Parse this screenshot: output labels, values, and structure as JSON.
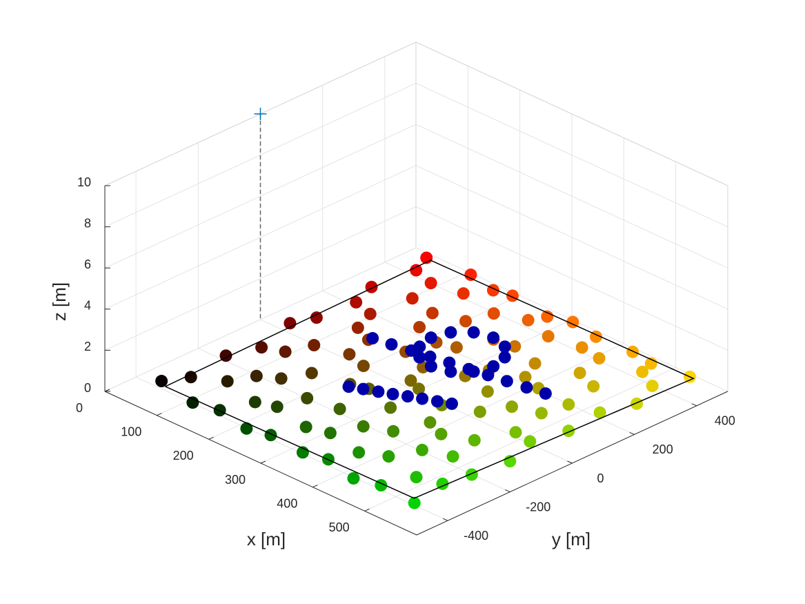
{
  "chart_data": {
    "type": "scatter3d",
    "xlabel": "x [m]",
    "ylabel": "y [m]",
    "zlabel": "z [m]",
    "xlim": [
      0,
      600
    ],
    "ylim": [
      -500,
      500
    ],
    "zlim": [
      0,
      10
    ],
    "xticks": [
      0,
      100,
      200,
      300,
      400,
      500
    ],
    "yticks": [
      -400,
      -200,
      0,
      200,
      400
    ],
    "zticks": [
      0,
      2,
      4,
      6,
      8,
      10
    ],
    "grid": true,
    "series": [
      {
        "marker": "o",
        "color": "position",
        "x": [
          33,
          53,
          42,
          59,
          36,
          50,
          56,
          39,
          47,
          31,
          108,
          97,
          114,
          91,
          105,
          111,
          94,
          102,
          88,
          109,
          150,
          167,
          143,
          161,
          158,
          146,
          169,
          152,
          141,
          163,
          214,
          198,
          209,
          221,
          196,
          207,
          217,
          201,
          212,
          193,
          251,
          268,
          263,
          249,
          272,
          256,
          247,
          266,
          259,
          270,
          318,
          304,
          322,
          309,
          297,
          315,
          326,
          301,
          312,
          306,
          357,
          372,
          361,
          378,
          353,
          369,
          375,
          356,
          368,
          359,
          421,
          409,
          428,
          413,
          404,
          424,
          411,
          419,
          407,
          426,
          462,
          479,
          471,
          458,
          481,
          466,
          474,
          460,
          477,
          468,
          531,
          518,
          527,
          536,
          514,
          529,
          521,
          538,
          516,
          533
        ],
        "y": [
          -373,
          -312,
          -181,
          -95,
          35,
          97,
          214,
          292,
          422,
          482,
          -398,
          -268,
          -203,
          -72,
          -3,
          128,
          196,
          318,
          401,
          494,
          -381,
          -296,
          -172,
          -104,
          22,
          103,
          229,
          299,
          417,
          476,
          -402,
          -277,
          -199,
          -81,
          4,
          121,
          203,
          324,
          396,
          488,
          -386,
          -301,
          -184,
          -67,
          29,
          95,
          218,
          305,
          428,
          471,
          -395,
          -283,
          -207,
          -98,
          13,
          132,
          190,
          315,
          404,
          493,
          -378,
          -305,
          -176,
          -86,
          -7,
          114,
          225,
          288,
          419,
          479,
          -404,
          -271,
          -195,
          -109,
          31,
          100,
          207,
          327,
          409,
          485,
          -384,
          -299,
          -168,
          -77,
          17,
          125,
          199,
          302,
          431,
          474,
          -392,
          -280,
          -201,
          -93,
          8,
          107,
          221,
          311,
          398,
          490
        ],
        "z": [
          0,
          0,
          0,
          0,
          0,
          0,
          0,
          0,
          0,
          0,
          0,
          0,
          0,
          0,
          0,
          0,
          0,
          0,
          0,
          0,
          0,
          0,
          0,
          0,
          0,
          0,
          0,
          0,
          0,
          0,
          0,
          0,
          0,
          0,
          0,
          0,
          0,
          0,
          0,
          0,
          0,
          0,
          0,
          0,
          0,
          0,
          0,
          0,
          0,
          0,
          0,
          0,
          0,
          0,
          0,
          0,
          0,
          0,
          0,
          0,
          0,
          0,
          0,
          0,
          0,
          0,
          0,
          0,
          0,
          0,
          0,
          0,
          0,
          0,
          0,
          0,
          0,
          0,
          0,
          0,
          0,
          0,
          0,
          0,
          0,
          0,
          0,
          0,
          0,
          0,
          0,
          0,
          0,
          0,
          0,
          0,
          0,
          0,
          0,
          0
        ]
      },
      {
        "marker": "o",
        "color": "#0000a8",
        "x": [
          322,
          314,
          292,
          262,
          232,
          210,
          202,
          210,
          232,
          262,
          292,
          314,
          225,
          244,
          264,
          283,
          302,
          321,
          341,
          360,
          147,
          178,
          210,
          241,
          272,
          304,
          335,
          366,
          398,
          429
        ],
        "y": [
          211,
          261,
          298,
          311,
          298,
          261,
          211,
          161,
          124,
          111,
          124,
          161,
          -92,
          -77,
          -62,
          -47,
          -31,
          -16,
          -1,
          14,
          115,
          124,
          134,
          143,
          153,
          162,
          172,
          181,
          191,
          200
        ],
        "z": [
          0,
          0,
          0,
          0,
          0,
          0,
          0,
          0,
          0,
          0,
          0,
          0,
          0,
          0,
          0,
          0,
          0,
          0,
          0,
          0,
          0,
          0,
          0,
          0,
          0,
          0,
          0,
          0,
          0,
          0
        ]
      },
      {
        "marker": "line",
        "color": "#000000",
        "x": [
          48,
          521,
          540,
          40,
          48
        ],
        "y": [
          -386,
          -376,
          490,
          480,
          -386
        ],
        "z": [
          0,
          0,
          0,
          0,
          0
        ]
      },
      {
        "marker": "+",
        "color": "#0072bd",
        "stem": true,
        "x": [
          0
        ],
        "y": [
          0
        ],
        "z": [
          10
        ]
      }
    ]
  }
}
